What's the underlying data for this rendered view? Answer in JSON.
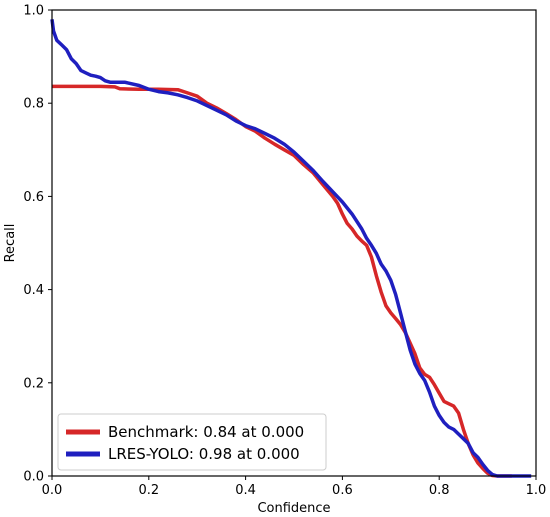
{
  "chart_data": {
    "type": "line",
    "title": "",
    "xlabel": "Confidence",
    "ylabel": "Recall",
    "xlim": [
      0.0,
      1.0
    ],
    "ylim": [
      0.0,
      1.0
    ],
    "x_ticks": [
      "0.0",
      "0.2",
      "0.4",
      "0.6",
      "0.8",
      "1.0"
    ],
    "y_ticks": [
      "0.0",
      "0.2",
      "0.4",
      "0.6",
      "0.8",
      "1.0"
    ],
    "grid": false,
    "legend_position": "bottom-left",
    "series": [
      {
        "name": "Benchmark: 0.84 at 0.000",
        "color": "#d62728",
        "points": [
          [
            0.0,
            0.836
          ],
          [
            0.05,
            0.836
          ],
          [
            0.1,
            0.836
          ],
          [
            0.13,
            0.835
          ],
          [
            0.14,
            0.831
          ],
          [
            0.18,
            0.83
          ],
          [
            0.22,
            0.83
          ],
          [
            0.26,
            0.829
          ],
          [
            0.28,
            0.822
          ],
          [
            0.3,
            0.815
          ],
          [
            0.32,
            0.8
          ],
          [
            0.34,
            0.79
          ],
          [
            0.36,
            0.778
          ],
          [
            0.38,
            0.765
          ],
          [
            0.4,
            0.75
          ],
          [
            0.42,
            0.74
          ],
          [
            0.44,
            0.725
          ],
          [
            0.46,
            0.712
          ],
          [
            0.48,
            0.7
          ],
          [
            0.5,
            0.688
          ],
          [
            0.52,
            0.668
          ],
          [
            0.54,
            0.65
          ],
          [
            0.56,
            0.625
          ],
          [
            0.58,
            0.6
          ],
          [
            0.59,
            0.585
          ],
          [
            0.6,
            0.562
          ],
          [
            0.61,
            0.542
          ],
          [
            0.62,
            0.53
          ],
          [
            0.63,
            0.515
          ],
          [
            0.64,
            0.504
          ],
          [
            0.65,
            0.495
          ],
          [
            0.66,
            0.47
          ],
          [
            0.67,
            0.43
          ],
          [
            0.68,
            0.395
          ],
          [
            0.69,
            0.365
          ],
          [
            0.7,
            0.35
          ],
          [
            0.71,
            0.338
          ],
          [
            0.72,
            0.325
          ],
          [
            0.73,
            0.308
          ],
          [
            0.74,
            0.285
          ],
          [
            0.75,
            0.262
          ],
          [
            0.76,
            0.232
          ],
          [
            0.77,
            0.218
          ],
          [
            0.78,
            0.212
          ],
          [
            0.79,
            0.196
          ],
          [
            0.8,
            0.178
          ],
          [
            0.81,
            0.16
          ],
          [
            0.82,
            0.155
          ],
          [
            0.83,
            0.15
          ],
          [
            0.84,
            0.135
          ],
          [
            0.85,
            0.1
          ],
          [
            0.86,
            0.07
          ],
          [
            0.87,
            0.045
          ],
          [
            0.88,
            0.028
          ],
          [
            0.89,
            0.016
          ],
          [
            0.9,
            0.006
          ],
          [
            0.91,
            0.001
          ],
          [
            0.92,
            0.0
          ],
          [
            0.95,
            0.0
          ]
        ]
      },
      {
        "name": "LRES-YOLO: 0.98 at 0.000",
        "color": "#1f1fbf",
        "points": [
          [
            0.0,
            0.98
          ],
          [
            0.003,
            0.955
          ],
          [
            0.01,
            0.935
          ],
          [
            0.02,
            0.925
          ],
          [
            0.03,
            0.915
          ],
          [
            0.04,
            0.895
          ],
          [
            0.05,
            0.885
          ],
          [
            0.06,
            0.87
          ],
          [
            0.07,
            0.865
          ],
          [
            0.08,
            0.86
          ],
          [
            0.09,
            0.858
          ],
          [
            0.1,
            0.855
          ],
          [
            0.11,
            0.848
          ],
          [
            0.12,
            0.845
          ],
          [
            0.15,
            0.845
          ],
          [
            0.18,
            0.838
          ],
          [
            0.2,
            0.83
          ],
          [
            0.22,
            0.825
          ],
          [
            0.24,
            0.822
          ],
          [
            0.26,
            0.818
          ],
          [
            0.28,
            0.812
          ],
          [
            0.3,
            0.805
          ],
          [
            0.32,
            0.795
          ],
          [
            0.34,
            0.785
          ],
          [
            0.36,
            0.775
          ],
          [
            0.38,
            0.762
          ],
          [
            0.4,
            0.752
          ],
          [
            0.42,
            0.745
          ],
          [
            0.44,
            0.735
          ],
          [
            0.46,
            0.725
          ],
          [
            0.48,
            0.712
          ],
          [
            0.5,
            0.695
          ],
          [
            0.52,
            0.675
          ],
          [
            0.54,
            0.655
          ],
          [
            0.56,
            0.632
          ],
          [
            0.58,
            0.61
          ],
          [
            0.6,
            0.588
          ],
          [
            0.62,
            0.562
          ],
          [
            0.64,
            0.53
          ],
          [
            0.65,
            0.51
          ],
          [
            0.66,
            0.495
          ],
          [
            0.67,
            0.478
          ],
          [
            0.68,
            0.455
          ],
          [
            0.69,
            0.44
          ],
          [
            0.7,
            0.42
          ],
          [
            0.71,
            0.39
          ],
          [
            0.72,
            0.35
          ],
          [
            0.73,
            0.31
          ],
          [
            0.74,
            0.27
          ],
          [
            0.75,
            0.24
          ],
          [
            0.76,
            0.22
          ],
          [
            0.77,
            0.205
          ],
          [
            0.78,
            0.18
          ],
          [
            0.79,
            0.15
          ],
          [
            0.8,
            0.13
          ],
          [
            0.81,
            0.115
          ],
          [
            0.82,
            0.105
          ],
          [
            0.83,
            0.1
          ],
          [
            0.84,
            0.09
          ],
          [
            0.85,
            0.08
          ],
          [
            0.86,
            0.07
          ],
          [
            0.87,
            0.05
          ],
          [
            0.88,
            0.04
          ],
          [
            0.89,
            0.025
          ],
          [
            0.9,
            0.012
          ],
          [
            0.91,
            0.003
          ],
          [
            0.92,
            0.0
          ],
          [
            0.95,
            0.0
          ],
          [
            0.99,
            0.0
          ]
        ]
      }
    ]
  }
}
